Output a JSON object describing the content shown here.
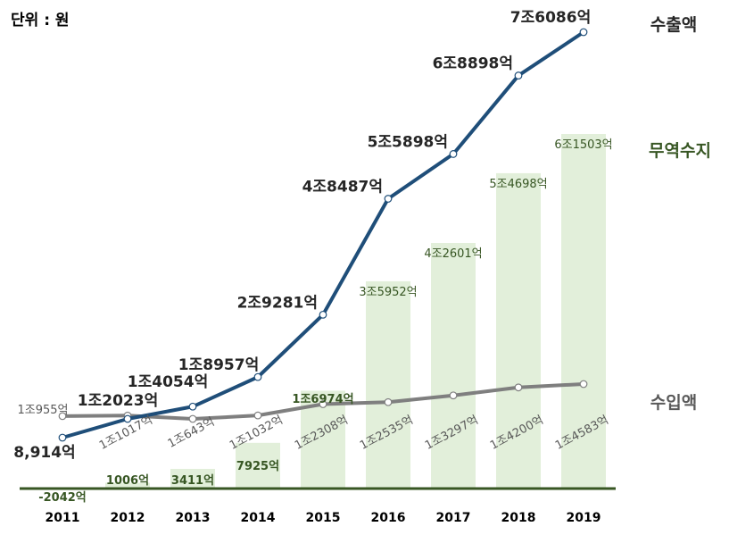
{
  "unit_label": "단위 : 원",
  "chart_data": {
    "type": "bar+line",
    "categories": [
      "2011",
      "2012",
      "2013",
      "2014",
      "2015",
      "2016",
      "2017",
      "2018",
      "2019"
    ],
    "series": [
      {
        "name": "수출액",
        "kind": "line",
        "color": "#1f4e79",
        "values": [
          8914,
          12023,
          14054,
          18957,
          29281,
          48487,
          55898,
          68898,
          76086
        ],
        "labels": [
          "8,914억",
          "1조2023억",
          "1조4054억",
          "1조8957억",
          "2조9281억",
          "4조8487억",
          "5조5898억",
          "6조8898억",
          "7조6086억"
        ]
      },
      {
        "name": "수입액",
        "kind": "line",
        "color": "#7f7f7f",
        "values": [
          10955,
          11017,
          10643,
          11032,
          12308,
          12535,
          13297,
          14200,
          14583
        ],
        "labels": [
          "1조955억",
          "1조1017억",
          "1조643억",
          "1조1032억",
          "1조2308억",
          "1조2535억",
          "1조3297억",
          "1조4200억",
          "1조4583억"
        ]
      },
      {
        "name": "무역수지",
        "kind": "bar",
        "color": "#e2efda",
        "label_color": "#375623",
        "values": [
          -2042,
          1006,
          3411,
          7925,
          16974,
          35952,
          42601,
          54698,
          61503
        ],
        "labels": [
          "-2042억",
          "1006억",
          "3411억",
          "7925억",
          "1조6974억",
          "3조5952억",
          "4조2601억",
          "5조4698억",
          "6조1503억"
        ]
      }
    ],
    "ylim": [
      -2042,
      76086
    ],
    "grid": false
  }
}
